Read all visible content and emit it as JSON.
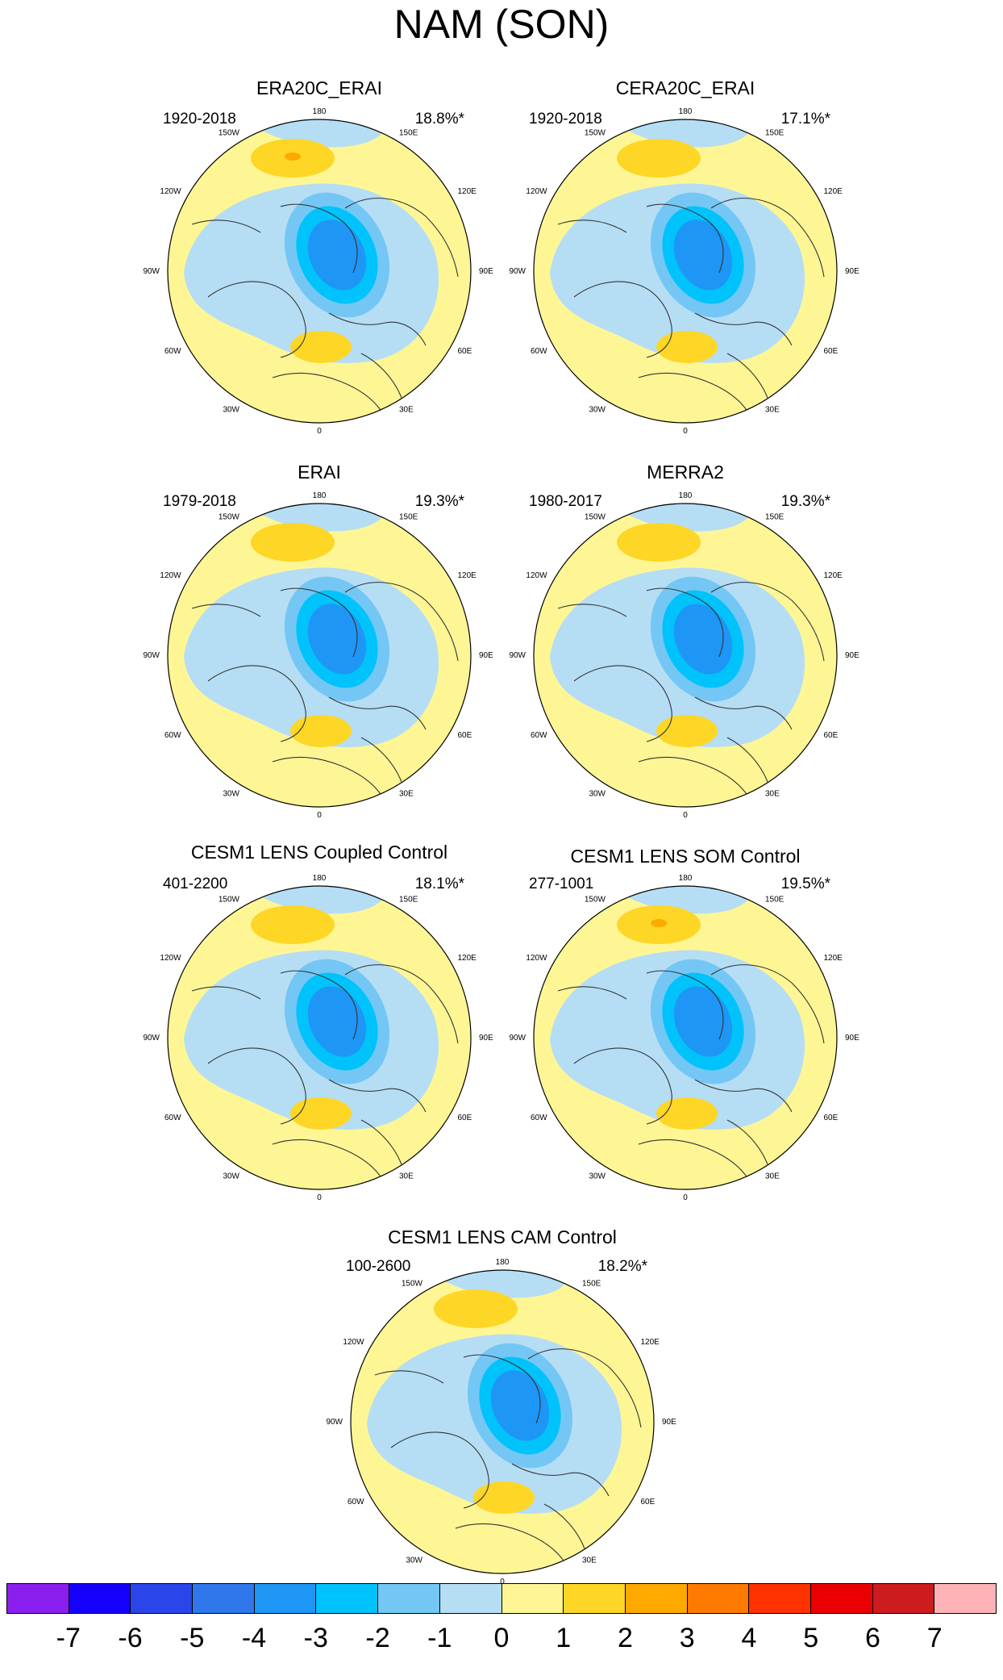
{
  "title": "NAM (SON)",
  "longitude_labels": [
    "180",
    "150E",
    "120E",
    "90E",
    "60E",
    "30E",
    "0",
    "30W",
    "60W",
    "90W",
    "120W",
    "150W"
  ],
  "panels": [
    {
      "title": "ERA20C_ERAI",
      "period": "1920-2018",
      "percent": "18.8%*",
      "center_value": -3.4,
      "atlantic_high": 1.6,
      "pacific_high": 1.9
    },
    {
      "title": "CERA20C_ERAI",
      "period": "1920-2018",
      "percent": "17.1%*",
      "center_value": -3.3,
      "atlantic_high": 1.7,
      "pacific_high": 1.5
    },
    {
      "title": "ERAI",
      "period": "1979-2018",
      "percent": "19.3%*",
      "center_value": -3.8,
      "atlantic_high": 1.4,
      "pacific_high": 1.4
    },
    {
      "title": "MERRA2",
      "period": "1980-2017",
      "percent": "19.3%*",
      "center_value": -3.9,
      "atlantic_high": 1.4,
      "pacific_high": 1.3
    },
    {
      "title": "CESM1 LENS Coupled Control",
      "period": "401-2200",
      "percent": "18.1%*",
      "center_value": -3.6,
      "atlantic_high": 1.2,
      "pacific_high": 1.3
    },
    {
      "title": "CESM1 LENS SOM Control",
      "period": "277-1001",
      "percent": "19.5%*",
      "center_value": -3.5,
      "atlantic_high": 1.3,
      "pacific_high": 1.8
    },
    {
      "title": "CESM1 LENS CAM Control",
      "period": "100-2600",
      "percent": "18.2%*",
      "center_value": -3.6,
      "atlantic_high": 1.3,
      "pacific_high": 1.2
    }
  ],
  "colorbar": {
    "colors": [
      "#8a1fef",
      "#1500fb",
      "#2a45ea",
      "#3177ec",
      "#1e96f5",
      "#00c3fb",
      "#74c7f4",
      "#b5def5",
      "#fef695",
      "#fed626",
      "#fea900",
      "#fe7a00",
      "#fe3200",
      "#ea0000",
      "#cc1c1e",
      "#feb3b6"
    ],
    "labels": [
      "-7",
      "-6",
      "-5",
      "-4",
      "-3",
      "-2",
      "-1",
      "0",
      "1",
      "2",
      "3",
      "4",
      "5",
      "6",
      "7"
    ]
  }
}
